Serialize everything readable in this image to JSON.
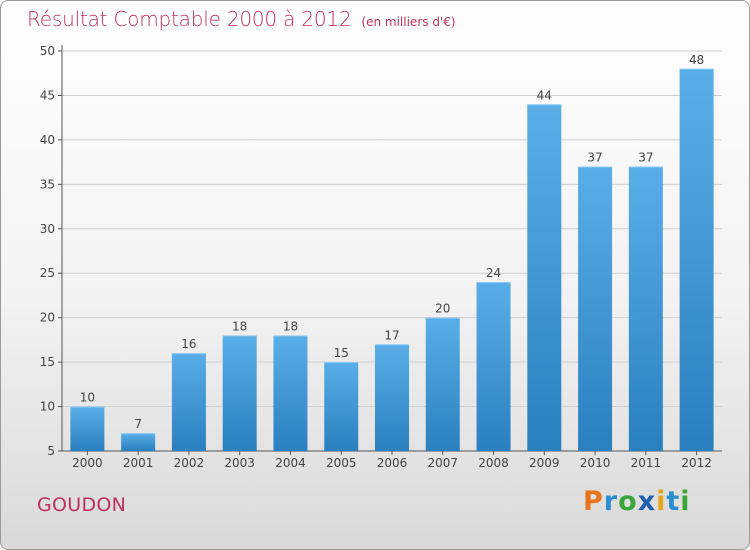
{
  "title": "Résultat Comptable 2000 à 2012",
  "unit_label": "(en milliers d'€)",
  "commune": "GOUDON",
  "logo": {
    "text": "Proxiti",
    "letters": [
      {
        "ch": "P",
        "color": "#e8731a"
      },
      {
        "ch": "r",
        "color": "#2a8fd1"
      },
      {
        "ch": "o",
        "color": "#3aa639"
      },
      {
        "ch": "x",
        "color": "#1f5fad"
      },
      {
        "ch": "i",
        "color": "#e8a41a"
      },
      {
        "ch": "t",
        "color": "#2a8fd1"
      },
      {
        "ch": "i",
        "color": "#3aa639"
      }
    ]
  },
  "colors": {
    "bar_top": "#5aaee8",
    "bar_bottom": "#2a7fbf",
    "title": "#c0305a",
    "grid": "#cfcfcf"
  },
  "chart_data": {
    "type": "bar",
    "categories": [
      "2000",
      "2001",
      "2002",
      "2003",
      "2004",
      "2005",
      "2006",
      "2007",
      "2008",
      "2009",
      "2010",
      "2011",
      "2012"
    ],
    "values": [
      10,
      7,
      16,
      18,
      18,
      15,
      17,
      20,
      24,
      44,
      37,
      37,
      48
    ],
    "title": "Résultat Comptable 2000 à 2012",
    "subtitle": "(en milliers d'€)",
    "xlabel": "",
    "ylabel": "",
    "ylim": [
      5,
      50
    ],
    "yticks": [
      5,
      10,
      15,
      20,
      25,
      30,
      35,
      40,
      45,
      50
    ],
    "grid": true,
    "data_labels": true
  }
}
